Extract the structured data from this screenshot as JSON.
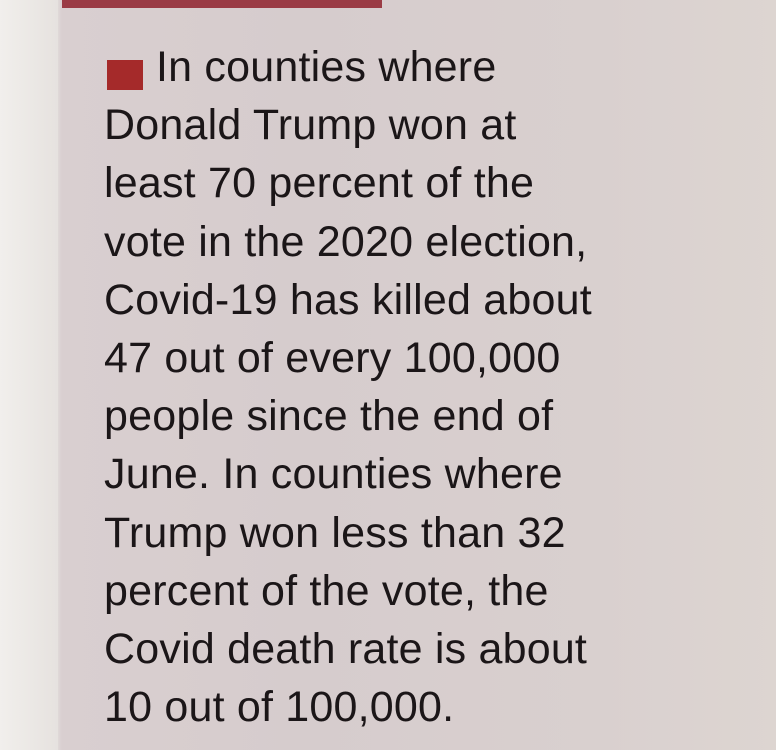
{
  "paragraph": {
    "lines": [
      "In counties where",
      "Donald Trump won at",
      "least 70 percent of the",
      "vote in the 2020 election,",
      "Covid-19 has killed about",
      "47 out of every 100,000",
      "people since the end of",
      "June. In counties where",
      "Trump won less than 32",
      "percent of the vote, the",
      "Covid death rate is about",
      "10 out of 100,000."
    ]
  }
}
